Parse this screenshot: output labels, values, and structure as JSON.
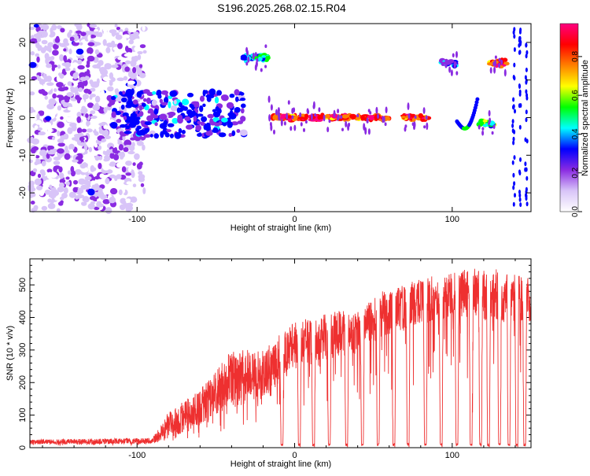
{
  "page": {
    "title": "S196.2025.268.02.15.R04"
  },
  "chart_data": [
    {
      "type": "heatmap",
      "title": "S196.2025.268.02.15.R04",
      "xlabel": "Height of straight line (km)",
      "ylabel": "Frequency (Hz)",
      "xlim": [
        -168,
        150
      ],
      "ylim": [
        -25,
        25
      ],
      "xticks": [
        -100,
        0,
        100
      ],
      "yticks": [
        -20,
        -10,
        0,
        10,
        20
      ],
      "colorbar": {
        "label": "Normalized spectral amplitude",
        "range": [
          0,
          0.97
        ],
        "ticks": [
          0.0,
          0.2,
          0.4,
          0.6,
          0.8
        ],
        "tick_labels": [
          "0.0",
          "0.2",
          "0.4",
          "0.6",
          "0.8"
        ],
        "colors": [
          "#ffffff",
          "#d8c4f8",
          "#8a2be2",
          "#0000ff",
          "#00ffff",
          "#00ff00",
          "#ffff00",
          "#ff8000",
          "#ff0000",
          "#ff0080"
        ]
      },
      "features": [
        {
          "name": "diffuse-noise",
          "x": [
            -168,
            -95
          ],
          "f": [
            -25,
            25
          ],
          "amplitude": 0.12
        },
        {
          "name": "transition-cluster",
          "x": [
            -115,
            -32
          ],
          "f": [
            -5,
            7
          ],
          "amplitude": 0.3
        },
        {
          "name": "upper-band",
          "x": [
            -33,
            -17
          ],
          "f": 16,
          "amplitude": 0.45
        },
        {
          "name": "zero-line",
          "x": [
            -17,
            60
          ],
          "f": 0,
          "amplitude": 0.85
        },
        {
          "name": "zero-line",
          "x": [
            69,
            85
          ],
          "f": 0,
          "amplitude": 0.85
        },
        {
          "name": "segment",
          "x": [
            93,
            103
          ],
          "f": 14.5,
          "amplitude": 0.3
        },
        {
          "name": "segment",
          "x": [
            123,
            135
          ],
          "f": 14.5,
          "amplitude": 0.8
        },
        {
          "name": "segment",
          "x": [
            117,
            127
          ],
          "f": -1.5,
          "amplitude": 0.5
        }
      ]
    },
    {
      "type": "line",
      "xlabel": "Height of straight line (km)",
      "ylabel": "SNR (10 * v/v)",
      "xlim": [
        -168,
        150
      ],
      "ylim": [
        0,
        580
      ],
      "xticks": [
        -100,
        0,
        100
      ],
      "yticks": [
        0,
        100,
        200,
        300,
        400,
        500
      ],
      "color": "#ee3030",
      "envelope": [
        {
          "x": -168,
          "base": 10,
          "peak": 25
        },
        {
          "x": -90,
          "base": 12,
          "peak": 30
        },
        {
          "x": -80,
          "base": 30,
          "peak": 110
        },
        {
          "x": -60,
          "base": 60,
          "peak": 180
        },
        {
          "x": -40,
          "base": 120,
          "peak": 300
        },
        {
          "x": -20,
          "base": 150,
          "peak": 300
        },
        {
          "x": 0,
          "base": 250,
          "peak": 390
        },
        {
          "x": 20,
          "base": 270,
          "peak": 420
        },
        {
          "x": 40,
          "base": 290,
          "peak": 420
        },
        {
          "x": 55,
          "base": 340,
          "peak": 480
        },
        {
          "x": 80,
          "base": 380,
          "peak": 520
        },
        {
          "x": 100,
          "base": 400,
          "peak": 540
        },
        {
          "x": 120,
          "base": 390,
          "peak": 560
        },
        {
          "x": 150,
          "base": 380,
          "peak": 520
        }
      ],
      "dips": [
        -8,
        3,
        12,
        22,
        33,
        43,
        53,
        63,
        72,
        83,
        93,
        103,
        112,
        118,
        123,
        130,
        136,
        141,
        146
      ]
    }
  ]
}
